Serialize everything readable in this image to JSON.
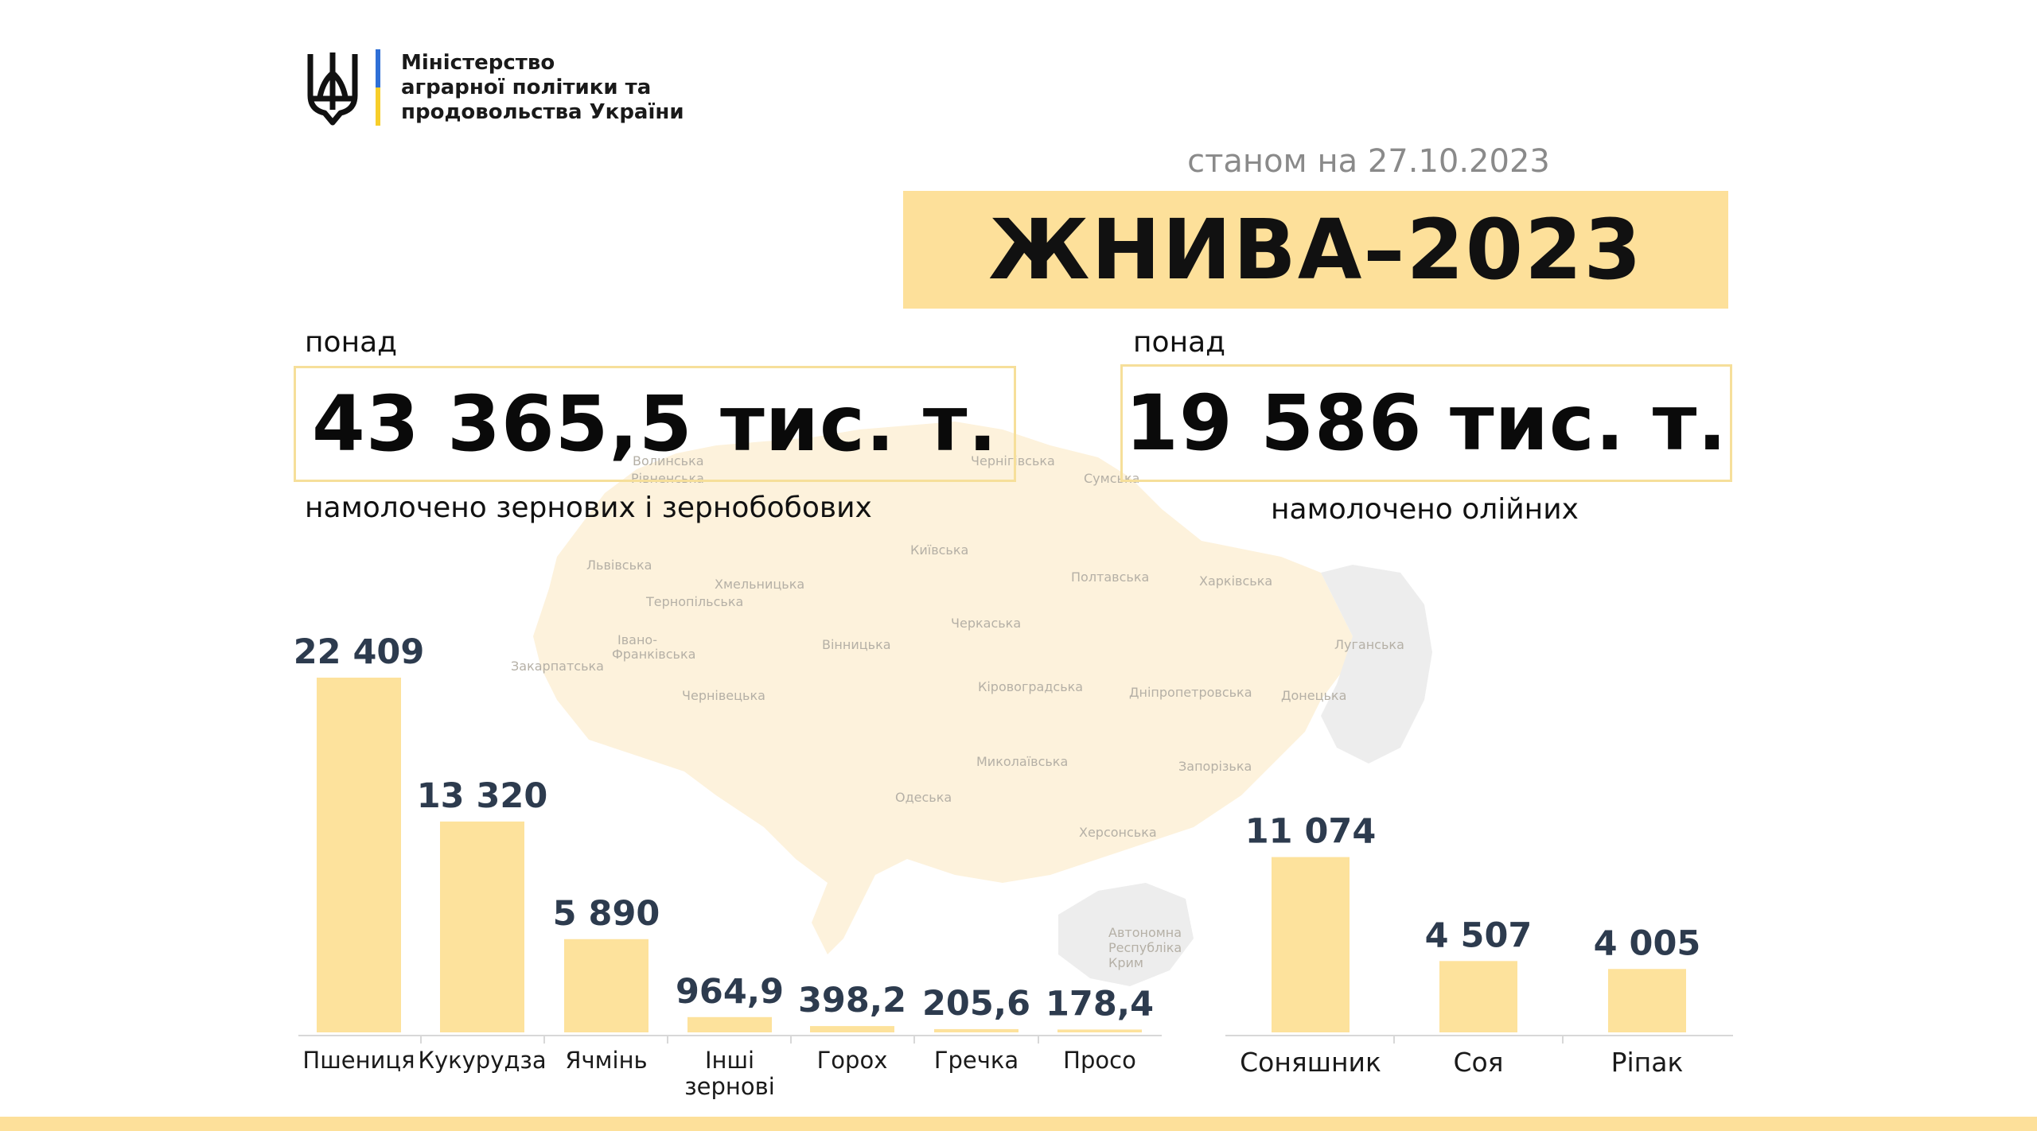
{
  "colors": {
    "accent_yellow": "#fde09a",
    "bar_yellow": "#fde29c",
    "value_text": "#2d3b4e",
    "map_fill": "#fdf2dc",
    "map_occupied": "#ededed",
    "flag_blue": "#2f6fd6",
    "flag_yellow": "#f7ce2a"
  },
  "header": {
    "logo_icon": "trident-icon",
    "ministry_lines": [
      "Міністерство",
      "аграрної політики та",
      "продовольства України"
    ]
  },
  "date_line": "станом на 27.10.2023",
  "title": "ЖНИВА–2023",
  "totals": {
    "grain": {
      "prefix": "понад",
      "value": "43 365,5 тис. т.",
      "caption": "намолочено зернових і зернобобових"
    },
    "oil": {
      "prefix": "понад",
      "value": "19 586 тис. т.",
      "caption": "намолочено олійних"
    }
  },
  "map": {
    "regions": [
      "Волинська",
      "Рівненська",
      "Чернігівська",
      "Сумська",
      "Львівська",
      "Київська",
      "Хмельницька",
      "Тернопільська",
      "Полтавська",
      "Харківська",
      "Черкаська",
      "Вінницька",
      "Івано-",
      "Франківська",
      "Луганська",
      "Закарпатська",
      "Чернівецька",
      "Кіровоградська",
      "Дніпропетровська",
      "Донецька",
      "Миколаївська",
      "Запорізька",
      "Одеська",
      "Херсонська",
      "Автономна",
      "Республіка",
      "Крим"
    ]
  },
  "chart_data": [
    {
      "type": "bar",
      "categories": [
        "Пшениця",
        "Кукурудза",
        "Ячмінь",
        "Інші зернові",
        "Горох",
        "Гречка",
        "Просо"
      ],
      "category_lines": [
        [
          "Пшениця"
        ],
        [
          "Кукурудза"
        ],
        [
          "Ячмінь"
        ],
        [
          "Інші",
          "зернові"
        ],
        [
          "Горох"
        ],
        [
          "Гречка"
        ],
        [
          "Просо"
        ]
      ],
      "values": [
        22409,
        13320,
        5890,
        964.9,
        398.2,
        205.6,
        178.4
      ],
      "value_labels": [
        "22 409",
        "13 320",
        "5 890",
        "964,9",
        "398,2",
        "205,6",
        "178,4"
      ]
    },
    {
      "type": "bar",
      "categories": [
        "Соняшник",
        "Соя",
        "Ріпак"
      ],
      "values": [
        11074,
        4507,
        4005
      ],
      "value_labels": [
        "11 074",
        "4 507",
        "4 005"
      ]
    }
  ]
}
